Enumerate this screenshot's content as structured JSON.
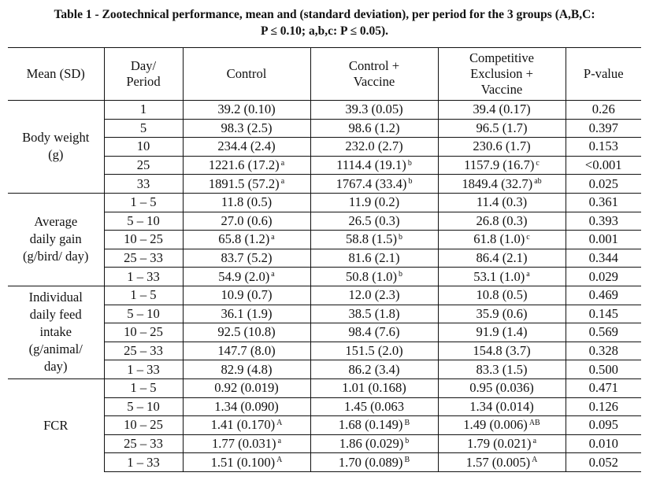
{
  "title": {
    "line1": "Table 1 - Zootechnical performance, mean and (standard deviation), per period for the 3 groups (A,B,C:",
    "line2": "P ≤ 0.10; a,b,c: P ≤ 0.05)."
  },
  "headers": {
    "mean_sd": "Mean (SD)",
    "day_period_1": "Day/",
    "day_period_2": "Period",
    "control": "Control",
    "control_vaccine_1": "Control +",
    "control_vaccine_2": "Vaccine",
    "ce_vaccine_1": "Competitive",
    "ce_vaccine_2": "Exclusion +",
    "ce_vaccine_3": "Vaccine",
    "pvalue": "P-value"
  },
  "groups": [
    {
      "label_lines": [
        "Body weight",
        "(g)"
      ],
      "rows": [
        {
          "day": "1",
          "control": "39.2 (0.10)",
          "control_sup": "",
          "cv": "39.3 (0.05)",
          "cv_sup": "",
          "ce": "39.4 (0.17)",
          "ce_sup": "",
          "p": "0.26"
        },
        {
          "day": "5",
          "control": "98.3 (2.5)",
          "control_sup": "",
          "cv": "98.6 (1.2)",
          "cv_sup": "",
          "ce": "96.5 (1.7)",
          "ce_sup": "",
          "p": "0.397"
        },
        {
          "day": "10",
          "control": "234.4 (2.4)",
          "control_sup": "",
          "cv": "232.0 (2.7)",
          "cv_sup": "",
          "ce": "230.6 (1.7)",
          "ce_sup": "",
          "p": "0.153"
        },
        {
          "day": "25",
          "control": "1221.6 (17.2)",
          "control_sup": "a",
          "cv": "1114.4 (19.1)",
          "cv_sup": "b",
          "ce": "1157.9 (16.7)",
          "ce_sup": "c",
          "p": "<0.001"
        },
        {
          "day": "33",
          "control": "1891.5 (57.2)",
          "control_sup": "a",
          "cv": "1767.4 (33.4)",
          "cv_sup": "b",
          "ce": "1849.4 (32.7)",
          "ce_sup": "ab",
          "p": "0.025"
        }
      ]
    },
    {
      "label_lines": [
        "Average",
        "daily gain",
        "(g/bird/ day)"
      ],
      "rows": [
        {
          "day": "1 – 5",
          "control": "11.8 (0.5)",
          "control_sup": "",
          "cv": "11.9 (0.2)",
          "cv_sup": "",
          "ce": "11.4 (0.3)",
          "ce_sup": "",
          "p": "0.361"
        },
        {
          "day": "5 – 10",
          "control": "27.0 (0.6)",
          "control_sup": "",
          "cv": "26.5 (0.3)",
          "cv_sup": "",
          "ce": "26.8 (0.3)",
          "ce_sup": "",
          "p": "0.393"
        },
        {
          "day": "10 – 25",
          "control": "65.8 (1.2)",
          "control_sup": "a",
          "cv": "58.8 (1.5)",
          "cv_sup": "b",
          "ce": "61.8 (1.0)",
          "ce_sup": "c",
          "p": "0.001"
        },
        {
          "day": "25 – 33",
          "control": "83.7 (5.2)",
          "control_sup": "",
          "cv": "81.6 (2.1)",
          "cv_sup": "",
          "ce": "86.4 (2.1)",
          "ce_sup": "",
          "p": "0.344"
        },
        {
          "day": "1 – 33",
          "control": "54.9 (2.0)",
          "control_sup": "a",
          "cv": "50.8 (1.0)",
          "cv_sup": "b",
          "ce": "53.1 (1.0)",
          "ce_sup": "a",
          "p": "0.029"
        }
      ]
    },
    {
      "label_lines": [
        "Individual",
        "daily feed",
        "intake",
        "(g/animal/",
        "day)"
      ],
      "rows": [
        {
          "day": "1 – 5",
          "control": "10.9 (0.7)",
          "control_sup": "",
          "cv": "12.0 (2.3)",
          "cv_sup": "",
          "ce": "10.8 (0.5)",
          "ce_sup": "",
          "p": "0.469"
        },
        {
          "day": "5 – 10",
          "control": "36.1 (1.9)",
          "control_sup": "",
          "cv": "38.5 (1.8)",
          "cv_sup": "",
          "ce": "35.9 (0.6)",
          "ce_sup": "",
          "p": "0.145"
        },
        {
          "day": "10 – 25",
          "control": "92.5 (10.8)",
          "control_sup": "",
          "cv": "98.4 (7.6)",
          "cv_sup": "",
          "ce": "91.9 (1.4)",
          "ce_sup": "",
          "p": "0.569"
        },
        {
          "day": "25 – 33",
          "control": "147.7 (8.0)",
          "control_sup": "",
          "cv": "151.5 (2.0)",
          "cv_sup": "",
          "ce": "154.8 (3.7)",
          "ce_sup": "",
          "p": "0.328"
        },
        {
          "day": "1 – 33",
          "control": "82.9 (4.8)",
          "control_sup": "",
          "cv": "86.2 (3.4)",
          "cv_sup": "",
          "ce": "83.3 (1.5)",
          "ce_sup": "",
          "p": "0.500"
        }
      ]
    },
    {
      "label_lines": [
        "FCR"
      ],
      "rows": [
        {
          "day": "1 – 5",
          "control": "0.92 (0.019)",
          "control_sup": "",
          "cv": "1.01 (0.168)",
          "cv_sup": "",
          "ce": "0.95 (0.036)",
          "ce_sup": "",
          "p": "0.471"
        },
        {
          "day": "5 – 10",
          "control": "1.34 (0.090)",
          "control_sup": "",
          "cv": "1.45 (0.063",
          "cv_sup": "",
          "ce": "1.34 (0.014)",
          "ce_sup": "",
          "p": "0.126"
        },
        {
          "day": "10 – 25",
          "control": "1.41 (0.170)",
          "control_sup": "A",
          "cv": "1.68 (0.149)",
          "cv_sup": "B",
          "ce": "1.49 (0.006)",
          "ce_sup": "AB",
          "p": "0.095"
        },
        {
          "day": "25 – 33",
          "control": "1.77 (0.031)",
          "control_sup": "a",
          "cv": "1.86 (0.029)",
          "cv_sup": "b",
          "ce": "1.79 (0.021)",
          "ce_sup": "a",
          "p": "0.010"
        },
        {
          "day": "1 – 33",
          "control": "1.51 (0.100)",
          "control_sup": "A",
          "cv": "1.70 (0.089)",
          "cv_sup": "B",
          "ce": "1.57 (0.005)",
          "ce_sup": "A",
          "p": "0.052"
        }
      ]
    }
  ]
}
